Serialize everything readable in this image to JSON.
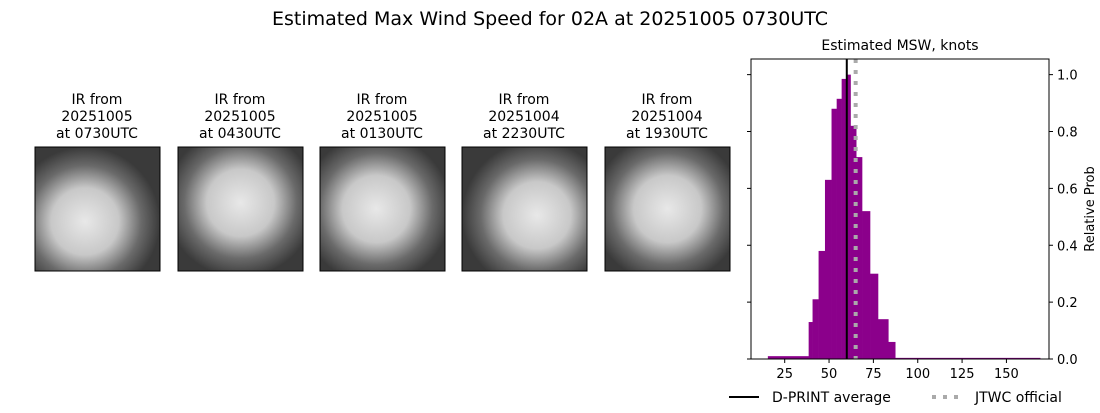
{
  "title": "Estimated Max Wind Speed for 02A at 20251005 0730UTC",
  "ir_panels": [
    {
      "line1": "IR from",
      "line2": "20251005",
      "line3": "at 0730UTC"
    },
    {
      "line1": "IR from",
      "line2": "20251005",
      "line3": "at 0430UTC"
    },
    {
      "line1": "IR from",
      "line2": "20251005",
      "line3": "at 0130UTC"
    },
    {
      "line1": "IR from",
      "line2": "20251004",
      "line3": "at 2230UTC"
    },
    {
      "line1": "IR from",
      "line2": "20251004",
      "line3": "at 1930UTC"
    }
  ],
  "chart_data": {
    "type": "bar",
    "title": "Estimated MSW, knots",
    "xlabel": "",
    "ylabel": "Relative Prob",
    "xlim": [
      6,
      174
    ],
    "ylim": [
      0,
      1.055
    ],
    "xticks": [
      "25",
      "50",
      "75",
      "100",
      "125",
      "150"
    ],
    "yticks": [
      "0.0",
      "0.2",
      "0.4",
      "0.6",
      "0.8",
      "1.0"
    ],
    "y_axis_side": "right",
    "grid": false,
    "bar_color": "#8b008b",
    "bins": [
      {
        "x0": 15.5,
        "x1": 38.5,
        "value": 0.01
      },
      {
        "x0": 38.5,
        "x1": 40.7,
        "value": 0.13
      },
      {
        "x0": 40.7,
        "x1": 44.1,
        "value": 0.21
      },
      {
        "x0": 44.1,
        "x1": 47.7,
        "value": 0.38
      },
      {
        "x0": 47.7,
        "x1": 51.4,
        "value": 0.63
      },
      {
        "x0": 51.4,
        "x1": 54.3,
        "value": 0.88
      },
      {
        "x0": 54.3,
        "x1": 57.1,
        "value": 0.915
      },
      {
        "x0": 57.1,
        "x1": 59.7,
        "value": 0.985
      },
      {
        "x0": 59.7,
        "x1": 62.1,
        "value": 1.0
      },
      {
        "x0": 62.1,
        "x1": 65.3,
        "value": 0.82
      },
      {
        "x0": 65.3,
        "x1": 68.6,
        "value": 0.71
      },
      {
        "x0": 68.6,
        "x1": 73.1,
        "value": 0.52
      },
      {
        "x0": 73.1,
        "x1": 77.6,
        "value": 0.3
      },
      {
        "x0": 77.6,
        "x1": 83.4,
        "value": 0.14
      },
      {
        "x0": 83.4,
        "x1": 87.3,
        "value": 0.06
      },
      {
        "x0": 87.3,
        "x1": 169.0,
        "value": 0.004
      }
    ],
    "reference_lines": [
      {
        "name": "D-PRINT average",
        "x": 60,
        "color": "#000000",
        "style": "solid"
      },
      {
        "name": "JTWC official",
        "x": 65,
        "color": "#aaaaaa",
        "style": "dotted"
      }
    ],
    "legend_placement": "bottom"
  }
}
